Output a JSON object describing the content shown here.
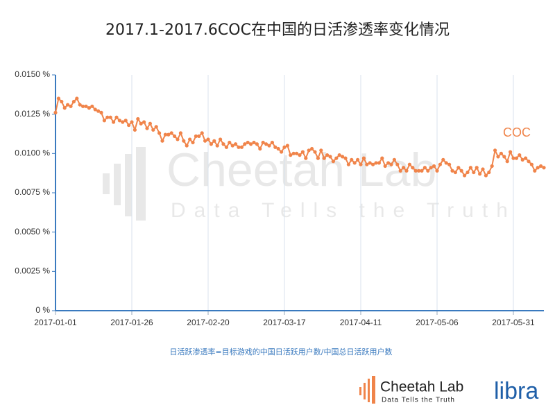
{
  "chart_data": {
    "type": "line",
    "title": "2017.1-2017.6COC在中国的日活渗透率变化情况",
    "note": "日活跃渗透率=目标游戏的中国日活跃用户数/中国总日活跃用户数",
    "watermark": {
      "name": "Cheetah Lab",
      "slogan": "Data Tells the Truth"
    },
    "logos": {
      "name": "Cheetah Lab",
      "slogan": "Data Tells the Truth",
      "partner": "libra"
    },
    "grid": "x",
    "xlim": [
      "2017-01-01",
      "2017-06-10"
    ],
    "xticks": [
      "2017-01-01",
      "2017-01-26",
      "2017-02-20",
      "2017-03-17",
      "2017-04-11",
      "2017-05-06",
      "2017-05-31"
    ],
    "ylim": [
      0,
      0.015
    ],
    "yticks": [
      {
        "value": 0,
        "label": "0 %"
      },
      {
        "value": 0.0025,
        "label": "0.0025 %"
      },
      {
        "value": 0.005,
        "label": "0.0050 %"
      },
      {
        "value": 0.0075,
        "label": "0.0075 %"
      },
      {
        "value": 0.01,
        "label": "0.0100 %"
      },
      {
        "value": 0.0125,
        "label": "0.0125 %"
      },
      {
        "value": 0.015,
        "label": "0.0150 %"
      }
    ],
    "x": [
      "2017-01-01",
      "2017-01-02",
      "2017-01-03",
      "2017-01-04",
      "2017-01-05",
      "2017-01-06",
      "2017-01-07",
      "2017-01-08",
      "2017-01-09",
      "2017-01-10",
      "2017-01-11",
      "2017-01-12",
      "2017-01-13",
      "2017-01-14",
      "2017-01-15",
      "2017-01-16",
      "2017-01-17",
      "2017-01-18",
      "2017-01-19",
      "2017-01-20",
      "2017-01-21",
      "2017-01-22",
      "2017-01-23",
      "2017-01-24",
      "2017-01-25",
      "2017-01-26",
      "2017-01-27",
      "2017-01-28",
      "2017-01-29",
      "2017-01-30",
      "2017-01-31",
      "2017-02-01",
      "2017-02-02",
      "2017-02-03",
      "2017-02-04",
      "2017-02-05",
      "2017-02-06",
      "2017-02-07",
      "2017-02-08",
      "2017-02-09",
      "2017-02-10",
      "2017-02-11",
      "2017-02-12",
      "2017-02-13",
      "2017-02-14",
      "2017-02-15",
      "2017-02-16",
      "2017-02-17",
      "2017-02-18",
      "2017-02-19",
      "2017-02-20",
      "2017-02-21",
      "2017-02-22",
      "2017-02-23",
      "2017-02-24",
      "2017-02-25",
      "2017-02-26",
      "2017-02-27",
      "2017-02-28",
      "2017-03-01",
      "2017-03-02",
      "2017-03-03",
      "2017-03-04",
      "2017-03-05",
      "2017-03-06",
      "2017-03-07",
      "2017-03-08",
      "2017-03-09",
      "2017-03-10",
      "2017-03-11",
      "2017-03-12",
      "2017-03-13",
      "2017-03-14",
      "2017-03-15",
      "2017-03-16",
      "2017-03-17",
      "2017-03-18",
      "2017-03-19",
      "2017-03-20",
      "2017-03-21",
      "2017-03-22",
      "2017-03-23",
      "2017-03-24",
      "2017-03-25",
      "2017-03-26",
      "2017-03-27",
      "2017-03-28",
      "2017-03-29",
      "2017-03-30",
      "2017-03-31",
      "2017-04-01",
      "2017-04-02",
      "2017-04-03",
      "2017-04-04",
      "2017-04-05",
      "2017-04-06",
      "2017-04-07",
      "2017-04-08",
      "2017-04-09",
      "2017-04-10",
      "2017-04-11",
      "2017-04-12",
      "2017-04-13",
      "2017-04-14",
      "2017-04-15",
      "2017-04-16",
      "2017-04-17",
      "2017-04-18",
      "2017-04-19",
      "2017-04-20",
      "2017-04-21",
      "2017-04-22",
      "2017-04-23",
      "2017-04-24",
      "2017-04-25",
      "2017-04-26",
      "2017-04-27",
      "2017-04-28",
      "2017-04-29",
      "2017-04-30",
      "2017-05-01",
      "2017-05-02",
      "2017-05-03",
      "2017-05-04",
      "2017-05-05",
      "2017-05-06",
      "2017-05-07",
      "2017-05-08",
      "2017-05-09",
      "2017-05-10",
      "2017-05-11",
      "2017-05-12",
      "2017-05-13",
      "2017-05-14",
      "2017-05-15",
      "2017-05-16",
      "2017-05-17",
      "2017-05-18",
      "2017-05-19",
      "2017-05-20",
      "2017-05-21",
      "2017-05-22",
      "2017-05-23",
      "2017-05-24",
      "2017-05-25",
      "2017-05-26",
      "2017-05-27",
      "2017-05-28",
      "2017-05-29",
      "2017-05-30",
      "2017-05-31",
      "2017-06-01",
      "2017-06-02",
      "2017-06-03",
      "2017-06-04",
      "2017-06-05",
      "2017-06-06",
      "2017-06-07",
      "2017-06-08",
      "2017-06-09",
      "2017-06-10"
    ],
    "series": [
      {
        "name": "COC",
        "color": "#f0844a",
        "values": [
          0.0126,
          0.0135,
          0.0133,
          0.0129,
          0.0131,
          0.013,
          0.0133,
          0.0135,
          0.0131,
          0.013,
          0.013,
          0.0129,
          0.013,
          0.0128,
          0.0127,
          0.0126,
          0.0121,
          0.0123,
          0.0123,
          0.012,
          0.0123,
          0.0121,
          0.012,
          0.0121,
          0.0118,
          0.012,
          0.0115,
          0.0122,
          0.0119,
          0.012,
          0.0116,
          0.0119,
          0.0115,
          0.0117,
          0.0113,
          0.0108,
          0.0112,
          0.0112,
          0.0113,
          0.0111,
          0.0109,
          0.0113,
          0.0108,
          0.0105,
          0.0109,
          0.0107,
          0.0111,
          0.0111,
          0.0113,
          0.0108,
          0.0109,
          0.0106,
          0.0108,
          0.0105,
          0.0109,
          0.0106,
          0.0104,
          0.0107,
          0.0105,
          0.0106,
          0.0104,
          0.0104,
          0.0106,
          0.0107,
          0.0106,
          0.0107,
          0.0106,
          0.0103,
          0.0107,
          0.0106,
          0.0105,
          0.0107,
          0.0104,
          0.0103,
          0.0101,
          0.0104,
          0.0105,
          0.0099,
          0.01,
          0.01,
          0.0099,
          0.0101,
          0.0097,
          0.0102,
          0.0103,
          0.0101,
          0.0097,
          0.0102,
          0.0097,
          0.0099,
          0.0098,
          0.0095,
          0.0097,
          0.0099,
          0.0098,
          0.0097,
          0.0093,
          0.0096,
          0.0094,
          0.0096,
          0.0093,
          0.0097,
          0.0093,
          0.0094,
          0.0093,
          0.0094,
          0.0094,
          0.0097,
          0.0092,
          0.0094,
          0.0093,
          0.0096,
          0.0093,
          0.0089,
          0.0091,
          0.0089,
          0.0093,
          0.0091,
          0.0089,
          0.0089,
          0.0089,
          0.0091,
          0.0089,
          0.0091,
          0.0092,
          0.0089,
          0.0093,
          0.0096,
          0.0094,
          0.0093,
          0.0089,
          0.0088,
          0.0091,
          0.0089,
          0.0086,
          0.0088,
          0.0091,
          0.0088,
          0.0091,
          0.0087,
          0.009,
          0.0086,
          0.0088,
          0.0092,
          0.0102,
          0.0098,
          0.01,
          0.0098,
          0.0095,
          0.0101,
          0.0097,
          0.0097,
          0.0099,
          0.0096,
          0.0097,
          0.0095,
          0.0093,
          0.0089,
          0.0091,
          0.0092,
          0.0091
        ]
      }
    ]
  }
}
